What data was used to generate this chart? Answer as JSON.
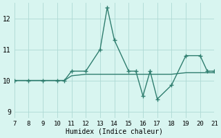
{
  "x_data": [
    7,
    8,
    9,
    10,
    10.5,
    11,
    12,
    13,
    13.5,
    14,
    15,
    15.5,
    16,
    16.5,
    17,
    18,
    19,
    20,
    20.5,
    21
  ],
  "y_data": [
    10.0,
    10.0,
    10.0,
    10.0,
    10.0,
    10.3,
    10.3,
    11.0,
    12.35,
    11.3,
    10.3,
    10.3,
    9.5,
    10.3,
    9.4,
    9.85,
    10.8,
    10.8,
    10.3,
    10.3
  ],
  "x_smooth": [
    7,
    8,
    9,
    10,
    10.5,
    11,
    12,
    13,
    14,
    15,
    16,
    17,
    18,
    19,
    20,
    21
  ],
  "y_smooth": [
    10.0,
    10.0,
    10.0,
    10.0,
    10.0,
    10.15,
    10.2,
    10.2,
    10.2,
    10.2,
    10.2,
    10.2,
    10.2,
    10.25,
    10.25,
    10.25
  ],
  "xlabel": "Humidex (Indice chaleur)",
  "xlim": [
    7,
    21
  ],
  "ylim": [
    8.8,
    12.5
  ],
  "xticks": [
    7,
    8,
    9,
    10,
    11,
    12,
    13,
    14,
    15,
    16,
    17,
    18,
    19,
    20,
    21
  ],
  "yticks": [
    9,
    10,
    11,
    12
  ],
  "line_color": "#2e7d6e",
  "marker": "+",
  "bg_color": "#d8f5f0",
  "grid_color": "#aed9d4",
  "font_family": "monospace"
}
